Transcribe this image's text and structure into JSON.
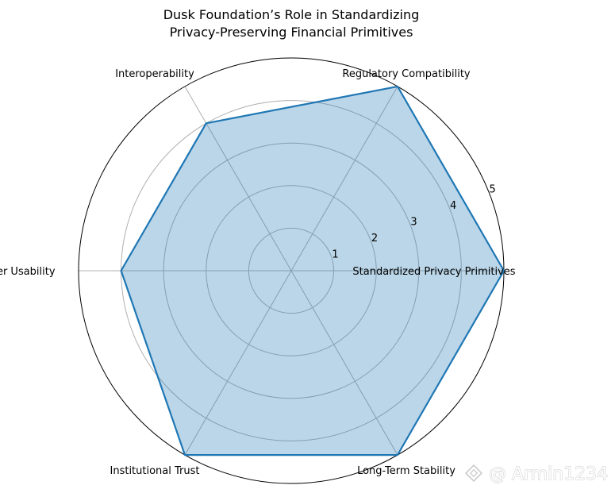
{
  "chart_data": {
    "type": "radar",
    "title_lines": [
      "Dusk Foundation’s Role in Standardizing",
      "Privacy-Preserving Financial Primitives"
    ],
    "categories": [
      "Standardized Privacy Primitives",
      "Regulatory Compatibility",
      "Interoperability",
      "Developer Usability",
      "Institutional Trust",
      "Long-Term Stability"
    ],
    "values": [
      5,
      5,
      4,
      4,
      5,
      5
    ],
    "rlim": [
      0,
      5
    ],
    "rticks": [
      1,
      2,
      3,
      4,
      5
    ],
    "grid": true,
    "colors": {
      "line": "#1f77b4",
      "fill": "#1f77b4",
      "fill_opacity": 0.3,
      "grid": "#b0b0b0",
      "spine": "#000000"
    }
  },
  "watermark": {
    "text": "@ Armin1234",
    "icon": "diamond-logo-icon"
  }
}
